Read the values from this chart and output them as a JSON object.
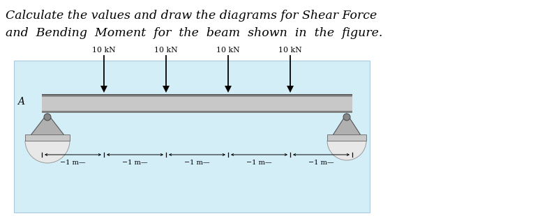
{
  "title_line1": "Calculate the values and draw the diagrams for Shear Force",
  "title_line2": "and  Bending  Moment  for  the  beam  shown  in  the  figure.",
  "title_fontsize": 12.5,
  "title_style": "italic",
  "title_family": "serif",
  "bg_box_color": "#d4eef8",
  "load_labels": [
    "10 kN",
    "10 kN",
    "10 kN",
    "10 kN"
  ],
  "load_fontsize": 7.8,
  "dim_label": "−1 m—",
  "dim_fontsize": 7.0,
  "label_A": "A",
  "label_fontsize": 10,
  "beam_color_top": "#a0a0a0",
  "beam_color_body": "#c8c8c8",
  "beam_color_bottom": "#888888",
  "support_color": "#b0b0b0",
  "support_edge": "#555555",
  "dome_color": "#e8e8e8"
}
